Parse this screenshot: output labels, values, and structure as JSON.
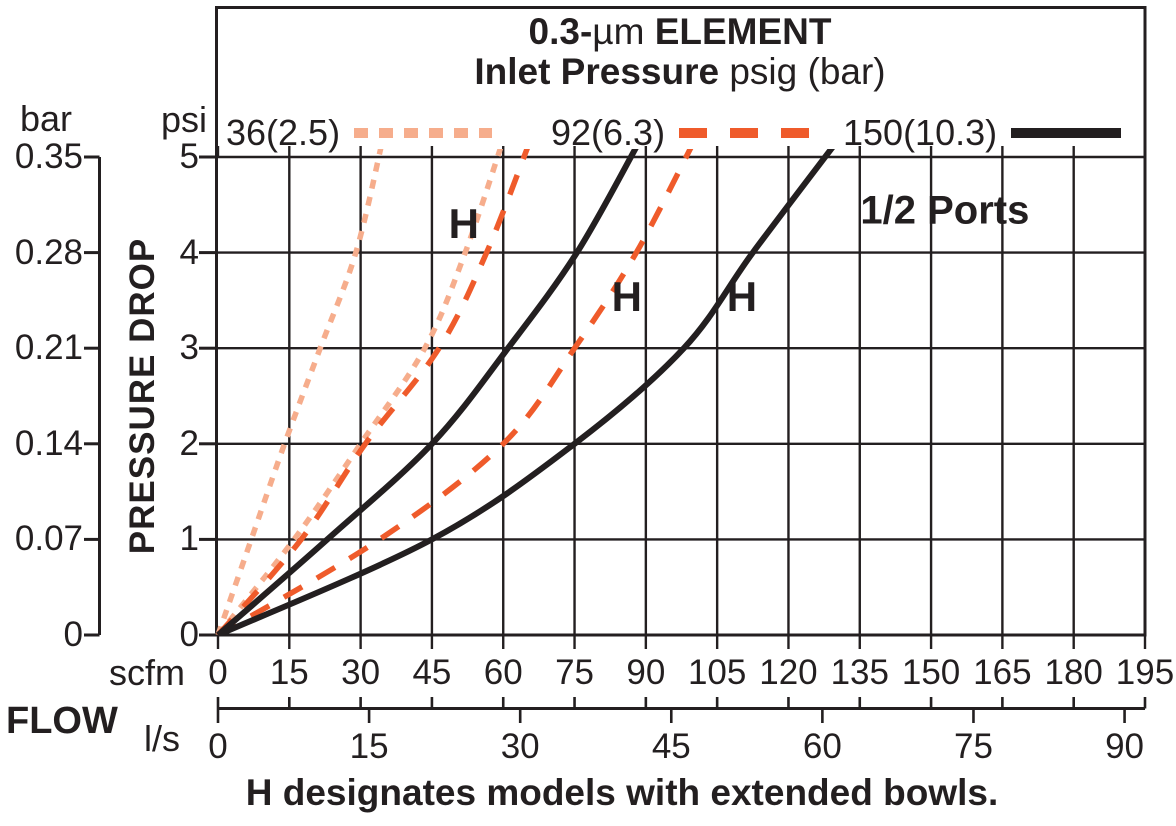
{
  "chart_data": {
    "type": "line",
    "title": {
      "line1_prefix": "0.3-",
      "line1_unit": "µm",
      "line1_suffix": " ELEMENT",
      "line2_bold": "Inlet Pressure",
      "line2_rest": " psig (bar)"
    },
    "legend": [
      {
        "label": "36(2.5)",
        "style": "dotted",
        "color": "#f6ad8c"
      },
      {
        "label": "92(6.3)",
        "style": "dashed",
        "color": "#ef5b2b"
      },
      {
        "label": "150(10.3)",
        "style": "solid",
        "color": "#231f20"
      }
    ],
    "axes": {
      "y_outer": {
        "unit": "bar",
        "ticks": [
          "0.35",
          "0.28",
          "0.21",
          "0.14",
          "0.07",
          "0"
        ]
      },
      "y_inner": {
        "unit": "psi",
        "ticks": [
          "5",
          "4",
          "3",
          "2",
          "1",
          "0"
        ],
        "min": 0,
        "max": 5
      },
      "y_label": "PRESSURE DROP",
      "x_top": {
        "unit": "scfm",
        "ticks": [
          0,
          15,
          30,
          45,
          60,
          75,
          90,
          105,
          120,
          135,
          150,
          165,
          180,
          195
        ],
        "min": 0,
        "max": 195
      },
      "x_bottom": {
        "unit": "l/s",
        "ticks": [
          0,
          15,
          30,
          45,
          60,
          75,
          90
        ],
        "scfm_per_unit": 2.1189
      },
      "x_label": "FLOW",
      "grid": true
    },
    "series": [
      {
        "name": "36(2.5) standard",
        "inlet_pressure": "36(2.5)",
        "model": "standard",
        "style": "dotted",
        "color": "#f6ad8c",
        "points": [
          [
            0,
            0
          ],
          [
            7,
            1
          ],
          [
            14,
            2
          ],
          [
            21.5,
            3
          ],
          [
            29,
            4
          ],
          [
            34.5,
            5.15
          ]
        ]
      },
      {
        "name": "36(2.5) H",
        "inlet_pressure": "36(2.5)",
        "model": "H",
        "style": "dotted",
        "color": "#f6ad8c",
        "points": [
          [
            0,
            0
          ],
          [
            16,
            1
          ],
          [
            30,
            2
          ],
          [
            43.5,
            3
          ],
          [
            52,
            4
          ],
          [
            59.8,
            5.15
          ]
        ]
      },
      {
        "name": "92(6.3) standard",
        "inlet_pressure": "92(6.3)",
        "model": "standard",
        "style": "dashed",
        "color": "#ef5b2b",
        "points": [
          [
            0,
            0
          ],
          [
            17.5,
            1
          ],
          [
            31,
            2
          ],
          [
            46.5,
            3
          ],
          [
            56.5,
            4
          ],
          [
            65.5,
            5.15
          ]
        ]
      },
      {
        "name": "92(6.3) H",
        "inlet_pressure": "92(6.3)",
        "model": "H",
        "style": "dashed",
        "color": "#ef5b2b",
        "points": [
          [
            0,
            0
          ],
          [
            34,
            1
          ],
          [
            60,
            2
          ],
          [
            75,
            3
          ],
          [
            88,
            4
          ],
          [
            100,
            5.15
          ]
        ]
      },
      {
        "name": "150(10.3) standard",
        "inlet_pressure": "150(10.3)",
        "model": "standard",
        "style": "solid",
        "color": "#231f20",
        "points": [
          [
            0,
            0
          ],
          [
            23,
            1
          ],
          [
            45,
            2
          ],
          [
            61,
            3
          ],
          [
            75.5,
            4
          ],
          [
            88.5,
            5.15
          ]
        ]
      },
      {
        "name": "150(10.3) H",
        "inlet_pressure": "150(10.3)",
        "model": "H",
        "style": "solid",
        "color": "#231f20",
        "points": [
          [
            0,
            0
          ],
          [
            45,
            1
          ],
          [
            75,
            2
          ],
          [
            98,
            3
          ],
          [
            112.5,
            4
          ],
          [
            130,
            5.15
          ]
        ]
      }
    ],
    "annotations": [
      {
        "text": "H",
        "scfm": 51.7,
        "psi": 4.3
      },
      {
        "text": "H",
        "scfm": 86.0,
        "psi": 3.54
      },
      {
        "text": "H",
        "scfm": 110.2,
        "psi": 3.54
      }
    ],
    "ports_note": {
      "text": "1/2 Ports",
      "scfm": 152.9,
      "psi": 4.43
    },
    "caption": "H designates models with extended bowls.",
    "ink_color": "#231f20"
  }
}
